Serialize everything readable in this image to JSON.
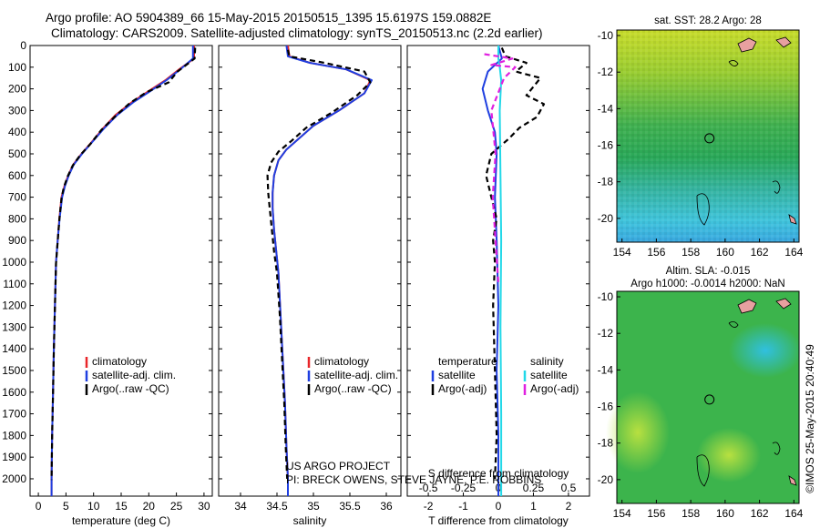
{
  "header": {
    "line1": "Argo profile: AO 5904389_66 15-May-2015 20150515_1395 15.6197S 159.0882E",
    "line2": "Climatology: CARS2009. Satellite-adjusted climatology: synTS_20150513.nc (2.2d earlier)"
  },
  "colors": {
    "climatology": "#e8262a",
    "satellite": "#1f3fe0",
    "argo": "#000000",
    "sal_satellite": "#22d8e8",
    "sal_argo": "#e020e0"
  },
  "chart_data": [
    {
      "type": "line",
      "name": "temperature-profile",
      "xlabel": "temperature (deg C)",
      "ylabel": "",
      "xlim": [
        -1.5,
        31.5
      ],
      "ylim": [
        2080,
        0
      ],
      "xticks": [
        0,
        5,
        10,
        15,
        20,
        25,
        30
      ],
      "yticks": [
        0,
        100,
        200,
        300,
        400,
        500,
        600,
        700,
        800,
        900,
        1000,
        1100,
        1200,
        1300,
        1400,
        1500,
        1600,
        1700,
        1800,
        1900,
        2000
      ],
      "legend": [
        "climatology",
        "satellite-adj. clim.",
        "Argo(..raw -QC)"
      ],
      "legend_position": "lower-center",
      "series": [
        {
          "name": "climatology",
          "style": "solid",
          "x": [
            28.2,
            28.2,
            25.5,
            23,
            20,
            17,
            14,
            11.8,
            9.5,
            7.8,
            6.3,
            5.4,
            4.7,
            4.2,
            3.8,
            3.5,
            3.2,
            3,
            2.8,
            2.65,
            2.5,
            2.4,
            2.4
          ],
          "y": [
            0,
            60,
            110,
            160,
            210,
            260,
            320,
            380,
            450,
            500,
            550,
            600,
            650,
            700,
            800,
            900,
            1000,
            1200,
            1400,
            1600,
            1800,
            2000,
            2080
          ]
        },
        {
          "name": "satellite-adj. clim.",
          "style": "solid",
          "x": [
            28,
            28,
            25.7,
            23.2,
            20.3,
            17.3,
            14.3,
            12,
            9.6,
            7.9,
            6.4,
            5.5,
            4.8,
            4.3,
            3.85,
            3.5,
            3.2,
            3,
            2.8,
            2.65,
            2.5,
            2.4,
            2.4
          ],
          "y": [
            0,
            60,
            110,
            160,
            210,
            260,
            320,
            380,
            450,
            500,
            550,
            600,
            650,
            700,
            800,
            900,
            1000,
            1200,
            1400,
            1600,
            1800,
            2000,
            2080
          ]
        },
        {
          "name": "Argo(..raw -QC)",
          "style": "dashed",
          "x": [
            28.4,
            28.3,
            25.2,
            23.6,
            19.6,
            16.6,
            13.8,
            11.4,
            9.4,
            7.6,
            6.2,
            5.3,
            4.6,
            4.2,
            3.8,
            3.5,
            3.2,
            3,
            2.8,
            2.65,
            2.5,
            2.4
          ],
          "y": [
            10,
            60,
            120,
            170,
            215,
            265,
            330,
            390,
            455,
            505,
            555,
            605,
            655,
            705,
            805,
            905,
            1005,
            1205,
            1405,
            1605,
            1805,
            2005
          ]
        }
      ]
    },
    {
      "type": "line",
      "name": "salinity-profile",
      "xlabel": "salinity",
      "xlim": [
        33.7,
        36.2
      ],
      "ylim": [
        2080,
        0
      ],
      "xticks": [
        34,
        34.5,
        35,
        35.5,
        36
      ],
      "legend": [
        "climatology",
        "satellite-adj. clim.",
        "Argo(..raw -QC)"
      ],
      "legend_position": "lower-center",
      "annotation": [
        "US ARGO PROJECT",
        "PI: BRECK OWENS, STEVE JAYNE, P.E. ROBBINS"
      ],
      "series": [
        {
          "name": "climatology",
          "style": "solid",
          "x": [
            34.65,
            34.67,
            34.95,
            35.45,
            35.78,
            35.7,
            35.35,
            35.0,
            34.8,
            34.63,
            34.52,
            34.46,
            34.44,
            34.44,
            34.46,
            34.49,
            34.52,
            34.55,
            34.58,
            34.61,
            34.63,
            34.65,
            34.65
          ],
          "y": [
            0,
            50,
            80,
            110,
            160,
            220,
            300,
            370,
            430,
            480,
            530,
            600,
            680,
            750,
            850,
            950,
            1050,
            1250,
            1450,
            1650,
            1850,
            2000,
            2080
          ]
        },
        {
          "name": "satellite-adj. clim.",
          "style": "solid",
          "x": [
            34.63,
            34.65,
            34.95,
            35.45,
            35.8,
            35.7,
            35.35,
            35.0,
            34.8,
            34.63,
            34.52,
            34.46,
            34.44,
            34.44,
            34.46,
            34.49,
            34.52,
            34.55,
            34.58,
            34.61,
            34.63,
            34.65,
            34.65
          ],
          "y": [
            0,
            50,
            80,
            110,
            160,
            220,
            300,
            370,
            430,
            480,
            530,
            600,
            680,
            750,
            850,
            950,
            1050,
            1250,
            1450,
            1650,
            1850,
            2000,
            2080
          ]
        },
        {
          "name": "Argo(..raw -QC)",
          "style": "dashed",
          "x": [
            34.65,
            34.67,
            35.15,
            35.7,
            35.78,
            35.6,
            35.25,
            34.9,
            34.7,
            34.52,
            34.42,
            34.37,
            34.38,
            34.4,
            34.43,
            34.46,
            34.5,
            34.54,
            34.57,
            34.6,
            34.62,
            34.64
          ],
          "y": [
            20,
            50,
            80,
            120,
            170,
            230,
            310,
            380,
            440,
            490,
            540,
            600,
            680,
            750,
            850,
            950,
            1050,
            1250,
            1450,
            1650,
            1850,
            2000
          ]
        }
      ]
    },
    {
      "type": "line",
      "name": "difference-profile",
      "xlabel": "T difference from climatology",
      "xlabel_top": "S difference from climatology",
      "xlim": [
        -2.6,
        2.6
      ],
      "ylim": [
        2080,
        0
      ],
      "xticks": [
        -2,
        -1,
        0,
        1,
        2
      ],
      "xticks_top": [
        -0.5,
        -0.25,
        0,
        0.25,
        0.5
      ],
      "legend_left": [
        "temperature",
        "satellite",
        "Argo(-adj)"
      ],
      "legend_right": [
        "salinity",
        "satellite",
        "Argo(-adj)"
      ],
      "legend_position": "lower-center",
      "series": [
        {
          "name": "temperature satellite",
          "style": "solid",
          "x": [
            0,
            0.1,
            -0.3,
            -0.45,
            -0.3,
            -0.1,
            -0.05,
            -0.1,
            -0.05,
            0,
            -0.05,
            0,
            0
          ],
          "y": [
            0,
            60,
            120,
            200,
            300,
            400,
            500,
            700,
            900,
            1200,
            1500,
            1800,
            2080
          ]
        },
        {
          "name": "temperature Argo(-adj)",
          "style": "dashed",
          "x": [
            0.1,
            0.2,
            0.8,
            0.5,
            1.2,
            0.8,
            1.3,
            1.1,
            0.6,
            0.3,
            -0.2,
            -0.35,
            -0.2,
            -0.05,
            -0.15,
            -0.1,
            -0.15,
            -0.1,
            -0.05,
            -0.1
          ],
          "y": [
            10,
            50,
            80,
            120,
            150,
            230,
            270,
            330,
            380,
            430,
            500,
            600,
            700,
            800,
            900,
            1000,
            1200,
            1500,
            1800,
            2000
          ]
        },
        {
          "name": "salinity satellite",
          "style": "solid",
          "x": [
            0,
            0,
            0.01,
            0.02,
            0.01,
            0.015,
            0.02,
            0.015,
            0.02,
            0.02
          ],
          "y": [
            0,
            60,
            100,
            160,
            300,
            600,
            900,
            1300,
            1700,
            2080
          ]
        },
        {
          "name": "salinity Argo(-adj)",
          "style": "dashed",
          "x": [
            -0.1,
            0.1,
            -0.05,
            0.12,
            0.04,
            -0.05,
            -0.02,
            -0.04,
            -0.02,
            0
          ],
          "y": [
            40,
            60,
            90,
            100,
            150,
            300,
            500,
            700,
            900,
            1100
          ]
        }
      ]
    },
    {
      "type": "heatmap",
      "name": "sst-map",
      "title": "sat. SST: 28.2 Argo: 28",
      "xlim": [
        153.7,
        164.3
      ],
      "ylim": [
        -21.3,
        -9.7
      ],
      "xticks": [
        154,
        156,
        158,
        160,
        162,
        164
      ],
      "yticks": [
        -10,
        -12,
        -14,
        -16,
        -18,
        -20
      ],
      "marker": {
        "lon": 159.0882,
        "lat": -15.6197
      }
    },
    {
      "type": "heatmap",
      "name": "sla-map",
      "title": "Altim. SLA: -0.015",
      "subtitle": "Argo h1000: -0.0014 h2000: NaN",
      "xlim": [
        153.7,
        164.3
      ],
      "ylim": [
        -21.3,
        -9.7
      ],
      "xticks": [
        154,
        156,
        158,
        160,
        162,
        164
      ],
      "yticks": [
        -10,
        -12,
        -14,
        -16,
        -18,
        -20
      ],
      "marker": {
        "lon": 159.0882,
        "lat": -15.6197
      }
    }
  ],
  "credit": "©IMOS 25-May-2015 20:40:49"
}
